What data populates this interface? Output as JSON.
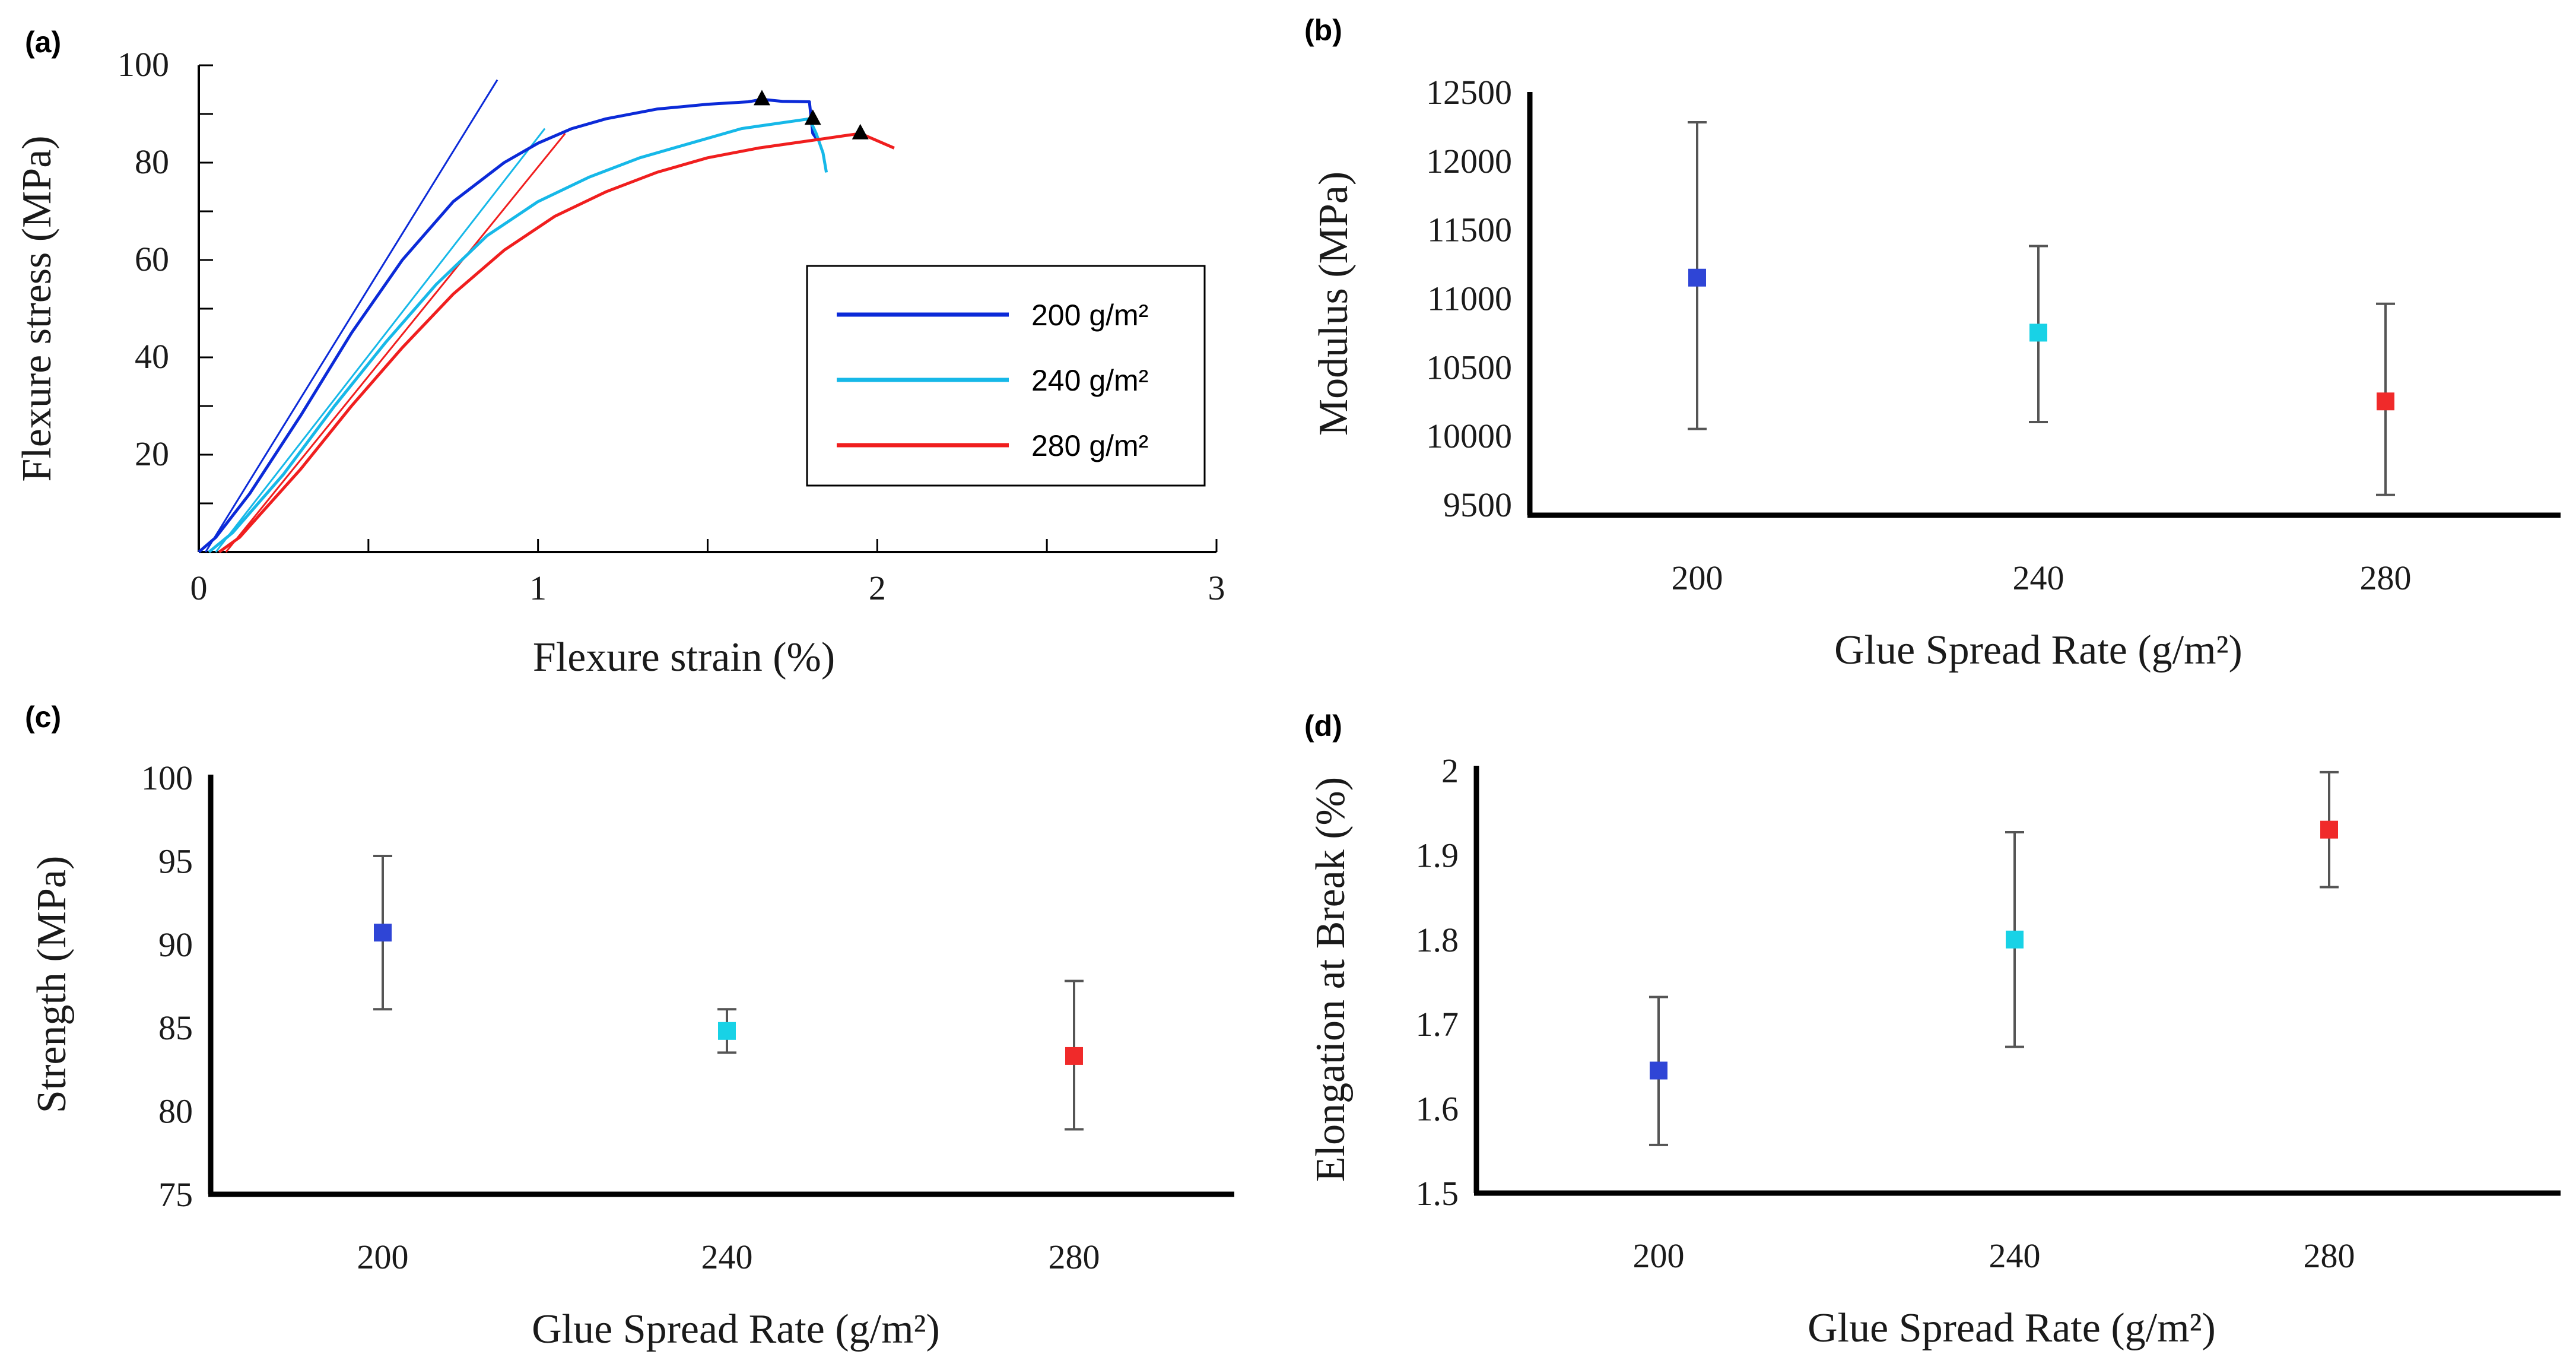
{
  "colors": {
    "blue": "#2f45d6",
    "cyan": "#18d2e6",
    "red": "#f02a2a",
    "axis": "#000000",
    "error_bar": "#555555"
  },
  "chart_data": [
    {
      "id": "a",
      "panel_label": "(a)",
      "type": "line",
      "xlabel": "Flexure strain (%)",
      "ylabel": "Flexure stress (MPa)",
      "xlim": [
        0,
        3
      ],
      "ylim": [
        0,
        100
      ],
      "xticks": [
        0,
        1,
        2,
        3
      ],
      "yticks": [
        20,
        40,
        60,
        80,
        100
      ],
      "legend_position": "center-right",
      "series": [
        {
          "name": "200 g/m²",
          "color": "#0b2ad8",
          "x": [
            0.0,
            0.05,
            0.15,
            0.3,
            0.45,
            0.6,
            0.75,
            0.9,
            1.0,
            1.1,
            1.2,
            1.35,
            1.5,
            1.62,
            1.66,
            1.72,
            1.8,
            1.81,
            1.82
          ],
          "y": [
            0,
            3,
            12,
            28,
            45,
            60,
            72,
            80,
            84,
            87,
            89,
            91,
            92,
            92.5,
            93,
            92.6,
            92.5,
            86,
            85
          ]
        },
        {
          "name": "240 g/m²",
          "color": "#16b8e8",
          "x": [
            0.03,
            0.1,
            0.25,
            0.4,
            0.55,
            0.7,
            0.85,
            1.0,
            1.15,
            1.3,
            1.45,
            1.6,
            1.7,
            1.8,
            1.82,
            1.84,
            1.85
          ],
          "y": [
            0,
            4,
            16,
            30,
            43,
            55,
            65,
            72,
            77,
            81,
            84,
            87,
            88,
            89,
            86,
            82,
            78
          ]
        },
        {
          "name": "280 g/m²",
          "color": "#f01e1e",
          "x": [
            0.06,
            0.12,
            0.3,
            0.45,
            0.6,
            0.75,
            0.9,
            1.05,
            1.2,
            1.35,
            1.5,
            1.65,
            1.8,
            1.9,
            1.95,
            2.0,
            2.05
          ],
          "y": [
            0,
            3,
            17,
            30,
            42,
            53,
            62,
            69,
            74,
            78,
            81,
            83,
            84.5,
            85.5,
            86,
            84.5,
            83
          ]
        }
      ],
      "modulus_lines": [
        {
          "series": "200 g/m²",
          "x": [
            0.02,
            0.88
          ],
          "y": [
            0,
            97
          ]
        },
        {
          "series": "240 g/m²",
          "x": [
            0.05,
            1.02
          ],
          "y": [
            0,
            87
          ]
        },
        {
          "series": "280 g/m²",
          "x": [
            0.08,
            1.08
          ],
          "y": [
            0,
            86
          ]
        }
      ],
      "break_markers": [
        {
          "x": 1.66,
          "y": 93
        },
        {
          "x": 1.81,
          "y": 89
        },
        {
          "x": 1.95,
          "y": 86
        }
      ]
    },
    {
      "id": "b",
      "panel_label": "(b)",
      "type": "scatter",
      "xlabel": "Glue Spread Rate (g/m²)",
      "ylabel": "Modulus (MPa)",
      "categories": [
        "200",
        "240",
        "280"
      ],
      "yticks": [
        9500,
        10000,
        10500,
        11000,
        11500,
        12000,
        12500
      ],
      "ylim": [
        9500,
        12500
      ],
      "points": [
        {
          "x": "200",
          "y": 11150,
          "err_low": 10050,
          "err_high": 12280,
          "color": "#2f45d6"
        },
        {
          "x": "240",
          "y": 10750,
          "err_low": 10100,
          "err_high": 11380,
          "color": "#18d2e6"
        },
        {
          "x": "280",
          "y": 10250,
          "err_low": 9570,
          "err_high": 10960,
          "color": "#f02a2a"
        }
      ]
    },
    {
      "id": "c",
      "panel_label": "(c)",
      "type": "scatter",
      "xlabel": "Glue Spread Rate (g/m²)",
      "ylabel": "Strength (MPa)",
      "categories": [
        "200",
        "240",
        "280"
      ],
      "yticks": [
        75,
        80,
        85,
        90,
        95,
        100
      ],
      "ylim": [
        75,
        100
      ],
      "points": [
        {
          "x": "200",
          "y": 90.7,
          "err_low": 86.1,
          "err_high": 95.3,
          "color": "#2f45d6"
        },
        {
          "x": "240",
          "y": 84.8,
          "err_low": 83.5,
          "err_high": 86.1,
          "color": "#18d2e6"
        },
        {
          "x": "280",
          "y": 83.3,
          "err_low": 78.9,
          "err_high": 87.8,
          "color": "#f02a2a"
        }
      ]
    },
    {
      "id": "d",
      "panel_label": "(d)",
      "type": "scatter",
      "xlabel": "Glue Spread Rate (g/m²)",
      "ylabel": "Elongation at Break (%)",
      "categories": [
        "200",
        "240",
        "280"
      ],
      "yticks": [
        1.5,
        1.6,
        1.7,
        1.8,
        1.9,
        2
      ],
      "ylim": [
        1.5,
        2.0
      ],
      "points": [
        {
          "x": "200",
          "y": 1.645,
          "err_low": 1.557,
          "err_high": 1.732,
          "color": "#2f45d6"
        },
        {
          "x": "240",
          "y": 1.8,
          "err_low": 1.673,
          "err_high": 1.927,
          "color": "#18d2e6"
        },
        {
          "x": "280",
          "y": 1.93,
          "err_low": 1.862,
          "err_high": 1.998,
          "color": "#f02a2a"
        }
      ]
    }
  ]
}
